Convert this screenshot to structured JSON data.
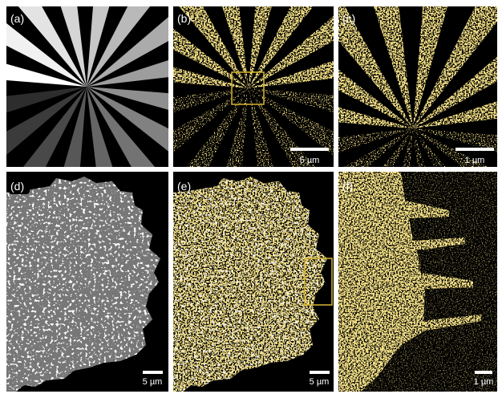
{
  "panels": [
    {
      "label": "(a)"
    },
    {
      "label": "(b)",
      "scale_bar": "5 µm"
    },
    {
      "label": "(c)",
      "scale_bar": "1 µm"
    },
    {
      "label": "(d)",
      "scale_bar": "5 µm"
    },
    {
      "label": "(e)",
      "scale_bar": "5 µm"
    },
    {
      "label": "(f)",
      "scale_bar": "1 µm"
    }
  ]
}
